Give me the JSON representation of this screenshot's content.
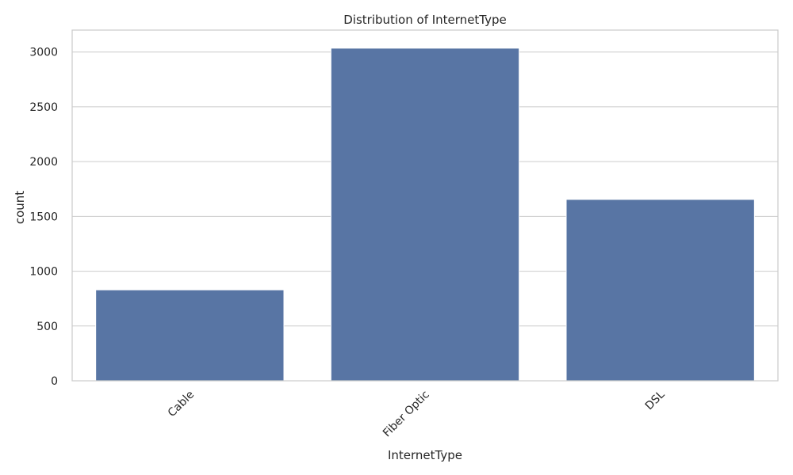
{
  "chart_data": {
    "type": "bar",
    "title": "Distribution of InternetType",
    "xlabel": "InternetType",
    "ylabel": "count",
    "categories": [
      "Cable",
      "Fiber Optic",
      "DSL"
    ],
    "values": [
      830,
      3035,
      1655
    ],
    "ylim": [
      0,
      3200
    ],
    "yticks": [
      0,
      500,
      1000,
      1500,
      2000,
      2500,
      3000
    ],
    "ytick_labels": [
      "0",
      "500",
      "1000",
      "1500",
      "2000",
      "2500",
      "3000"
    ],
    "xtick_rotation": 45,
    "grid": "y",
    "bar_color": "#5875a4",
    "grid_color": "#cccccc",
    "frame_color": "#cccccc",
    "text_color": "#262626"
  }
}
